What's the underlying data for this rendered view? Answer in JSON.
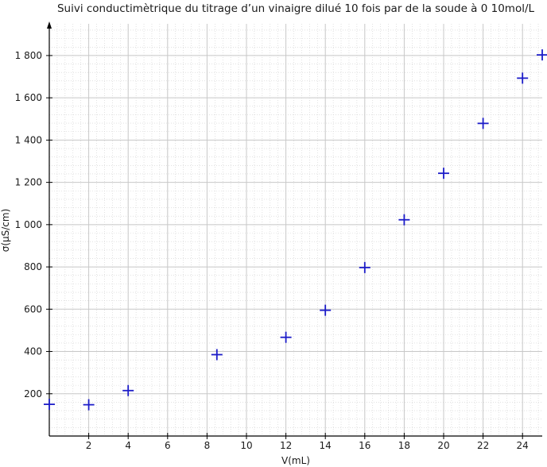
{
  "chart_data": {
    "type": "scatter",
    "title": "Suivi conductimètrique du titrage d’un vinaigre dilué 10 fois par de la soude à 0 10mol/L",
    "xlabel": "V(mL)",
    "ylabel": "σ(µS/cm)",
    "xlim": [
      0,
      25
    ],
    "ylim": [
      0,
      1950
    ],
    "xticks": [
      2,
      4,
      6,
      8,
      10,
      12,
      14,
      16,
      18,
      20,
      22,
      24
    ],
    "yticks": [
      200,
      400,
      600,
      800,
      1000,
      1200,
      1400,
      1600,
      1800
    ],
    "ytick_labels": [
      "200",
      "400",
      "600",
      "800",
      "1 000",
      "1 200",
      "1 400",
      "1 600",
      "1 800"
    ],
    "grid": true,
    "marker": "plus",
    "series": [
      {
        "color": "#1c1cc8",
        "x": [
          0,
          2,
          4,
          8.5,
          12,
          14,
          16,
          18,
          20,
          22,
          24,
          25
        ],
        "y": [
          150,
          148,
          215,
          385,
          467,
          595,
          797,
          1023,
          1243,
          1479,
          1693,
          1803
        ]
      }
    ]
  }
}
